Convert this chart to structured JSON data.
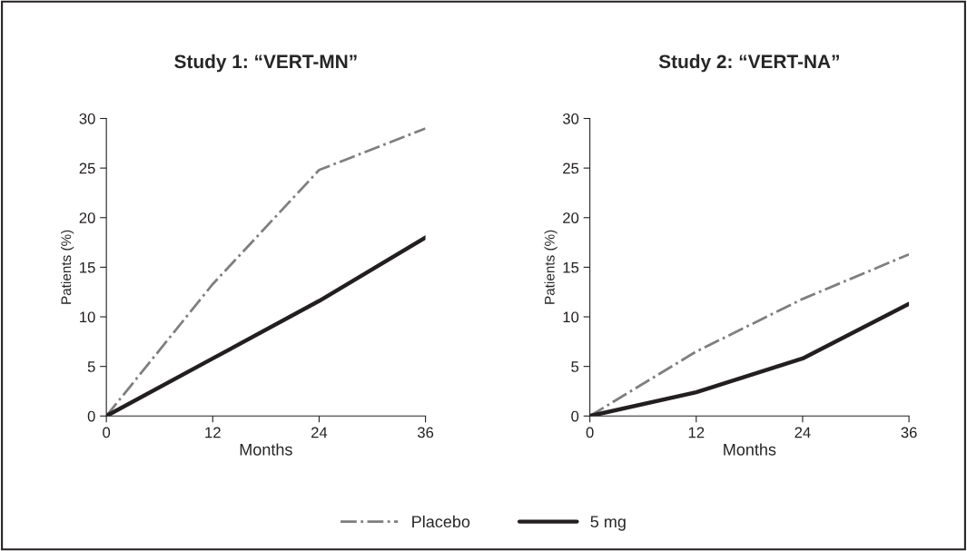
{
  "chart_data": [
    {
      "type": "line",
      "title": "Study 1: “VERT-MN”",
      "xlabel": "Months",
      "ylabel": "Patients (%)",
      "x": [
        0,
        12,
        24,
        36
      ],
      "xlim": [
        0,
        36
      ],
      "xticks": [
        0,
        12,
        24,
        36
      ],
      "ylim": [
        0,
        30
      ],
      "yticks": [
        0,
        5,
        10,
        15,
        20,
        25,
        30
      ],
      "legend": "bottom",
      "series": [
        {
          "name": "Placebo",
          "color": "#7f7f7f",
          "line_style": "dashdot",
          "values": [
            0,
            13.3,
            24.8,
            29
          ]
        },
        {
          "name": "5 mg",
          "color": "#231f20",
          "line_style": "solid",
          "values": [
            0,
            5.8,
            11.6,
            18
          ]
        }
      ]
    },
    {
      "type": "line",
      "title": "Study 2: “VERT-NA”",
      "xlabel": "Months",
      "ylabel": "Patients (%)",
      "x": [
        0,
        12,
        24,
        36
      ],
      "xlim": [
        0,
        36
      ],
      "xticks": [
        0,
        12,
        24,
        36
      ],
      "ylim": [
        0,
        30
      ],
      "yticks": [
        0,
        5,
        10,
        15,
        20,
        25,
        30
      ],
      "series": [
        {
          "color": "#7f7f7f",
          "line_style": "dashdot",
          "values": [
            0,
            6.5,
            11.8,
            16.3
          ]
        },
        {
          "color": "#231f20",
          "line_style": "solid",
          "values": [
            0,
            2.4,
            5.8,
            11.3
          ]
        }
      ]
    }
  ]
}
